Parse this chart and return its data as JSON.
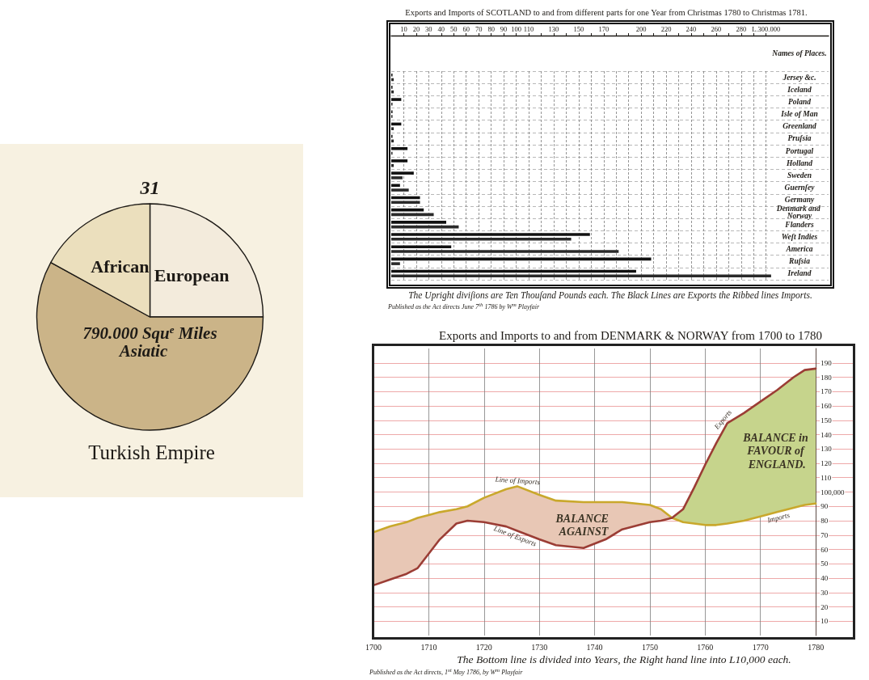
{
  "chart_data": [
    {
      "type": "pie",
      "title": "Turkish Empire",
      "categories": [
        "European",
        "Asiatic",
        "African"
      ],
      "values": [
        25,
        58,
        17
      ],
      "colors": [
        "#f3ebdc",
        "#cbb488",
        "#ebdfbd"
      ],
      "annotations": [
        "31",
        "790.000 Squ$^{e}$ Miles"
      ]
    },
    {
      "type": "bar",
      "orientation": "horizontal",
      "title": "Exports and Imports of SCOTLAND to and from different parts for one Year from Christmas 1780 to Christmas 1781.",
      "ylabel": "Names of Places.",
      "categories": [
        "Jersey &c.",
        "Iceland",
        "Poland",
        "Isle of Man",
        "Greenland",
        "Pruſsia",
        "Portugal",
        "Holland",
        "Sweden",
        "Guernſey",
        "Germany",
        "Denmark and Norway",
        "Flanders",
        "Weſt Indies",
        "America",
        "Ruſsia",
        "Ireland"
      ],
      "series": [
        {
          "color": "#111111",
          "values": [
            1,
            1,
            8,
            1,
            8,
            1,
            13,
            13,
            18,
            7,
            23,
            26,
            44,
            159,
            48,
            208,
            196
          ]
        },
        {
          "color": "#2a2a2a",
          "values": [
            2,
            2,
            1,
            1,
            2,
            2,
            1,
            2,
            9,
            14,
            23,
            34,
            54,
            144,
            182,
            7,
            304
          ]
        }
      ],
      "xlim": [
        0,
        350
      ],
      "xticks": [
        10,
        20,
        30,
        40,
        50,
        60,
        70,
        80,
        90,
        100,
        110,
        {
          "value": 120,
          "label": null
        },
        130,
        {
          "value": 140,
          "label": null
        },
        150,
        {
          "value": 160,
          "label": null
        },
        170,
        {
          "value": 180,
          "label": null
        },
        {
          "value": 190,
          "label": null
        },
        200,
        {
          "value": 210,
          "label": null
        },
        220,
        {
          "value": 230,
          "label": null
        },
        240,
        {
          "value": 250,
          "label": null
        },
        260,
        {
          "value": 270,
          "label": null
        },
        280,
        {
          "value": 290,
          "label": null
        },
        {
          "value": 300,
          "label": "L.300.000"
        }
      ],
      "grid": true,
      "annotations": [
        "The Upright diviſions are Ten Thouſand Pounds each. The Black Lines are Exports the Ribbed lines Imports.",
        "Published as the Act directs June 7$^{th}$ 1786 by W$^{m}$ Playfair"
      ]
    },
    {
      "type": "line",
      "title": "Exports and Imports to and from DENMARK & NORWAY from 1700 to 1780",
      "x": [
        1700,
        1703,
        1706,
        1708,
        1710,
        1712,
        1715,
        1717,
        1720,
        1724,
        1726,
        1730,
        1733,
        1738,
        1742,
        1745,
        1750,
        1752,
        1754,
        1756,
        1758,
        1760,
        1762,
        1764,
        1767,
        1770,
        1773,
        1776,
        1778,
        1780
      ],
      "series": [
        {
          "color": "#c9a82c",
          "values": [
            72,
            76,
            79,
            82,
            84,
            86,
            88,
            90,
            96,
            102,
            104,
            98,
            94,
            93,
            93,
            93,
            91,
            88,
            82,
            79,
            78,
            77,
            77,
            78,
            80,
            83,
            86,
            89,
            91,
            92
          ],
          "lower": [
            null,
            null,
            null,
            null,
            null,
            null,
            null,
            null,
            null,
            null,
            null,
            null,
            null,
            null,
            null,
            null,
            null,
            null,
            82,
            79,
            78,
            77,
            77,
            78,
            80,
            83,
            86,
            89,
            91,
            92
          ],
          "upper": [
            null,
            null,
            null,
            null,
            null,
            null,
            null,
            null,
            null,
            null,
            null,
            null,
            null,
            null,
            null,
            null,
            null,
            null,
            82,
            88,
            103,
            119,
            134,
            148,
            155,
            163,
            171,
            180,
            185,
            186
          ]
        },
        {
          "color": "#9b3d35",
          "values": [
            35,
            39,
            43,
            47,
            57,
            67,
            78,
            80,
            79,
            76,
            73,
            67,
            63,
            61,
            67,
            74,
            79,
            80,
            82,
            88,
            103,
            119,
            134,
            148,
            155,
            163,
            171,
            180,
            185,
            186
          ],
          "lower": [
            35,
            39,
            43,
            47,
            57,
            67,
            78,
            80,
            79,
            76,
            73,
            67,
            63,
            61,
            67,
            74,
            79,
            80,
            82,
            null,
            null,
            null,
            null,
            null,
            null,
            null,
            null,
            null,
            null,
            null
          ],
          "upper": [
            72,
            76,
            79,
            82,
            84,
            86,
            88,
            90,
            96,
            102,
            104,
            98,
            94,
            93,
            93,
            93,
            91,
            88,
            82,
            null,
            null,
            null,
            null,
            null,
            null,
            null,
            null,
            null,
            null,
            null
          ]
        }
      ],
      "xlim": [
        1700,
        1787
      ],
      "xticks": [
        1700,
        1710,
        1720,
        1730,
        1740,
        1750,
        1760,
        1770,
        1780
      ],
      "ylim": [
        0,
        200
      ],
      "yticks": [
        10,
        20,
        30,
        40,
        50,
        60,
        70,
        80,
        90,
        {
          "value": 100,
          "label": "100,000"
        },
        110,
        120,
        130,
        140,
        150,
        160,
        170,
        180,
        190
      ],
      "grid": true,
      "annotations": [
        {
          "text": "Line of Imports",
          "x": 1726,
          "y": 104
        },
        {
          "text": "Line of Exports",
          "x": 1726,
          "y": 73
        },
        {
          "text": "Exports",
          "x": 1764,
          "y": 148
        },
        {
          "text": "Imports",
          "x": 1773,
          "y": 86
        },
        "BALANCE AGAINST",
        "BALANCE in FAVOUR of ENGLAND.",
        "The Bottom line is divided into Years, the Right hand line into L10,000 each.",
        "Published as the Act directs, 1$^{st}$ May 1786, by W$^{m}$ Playfair"
      ]
    }
  ]
}
